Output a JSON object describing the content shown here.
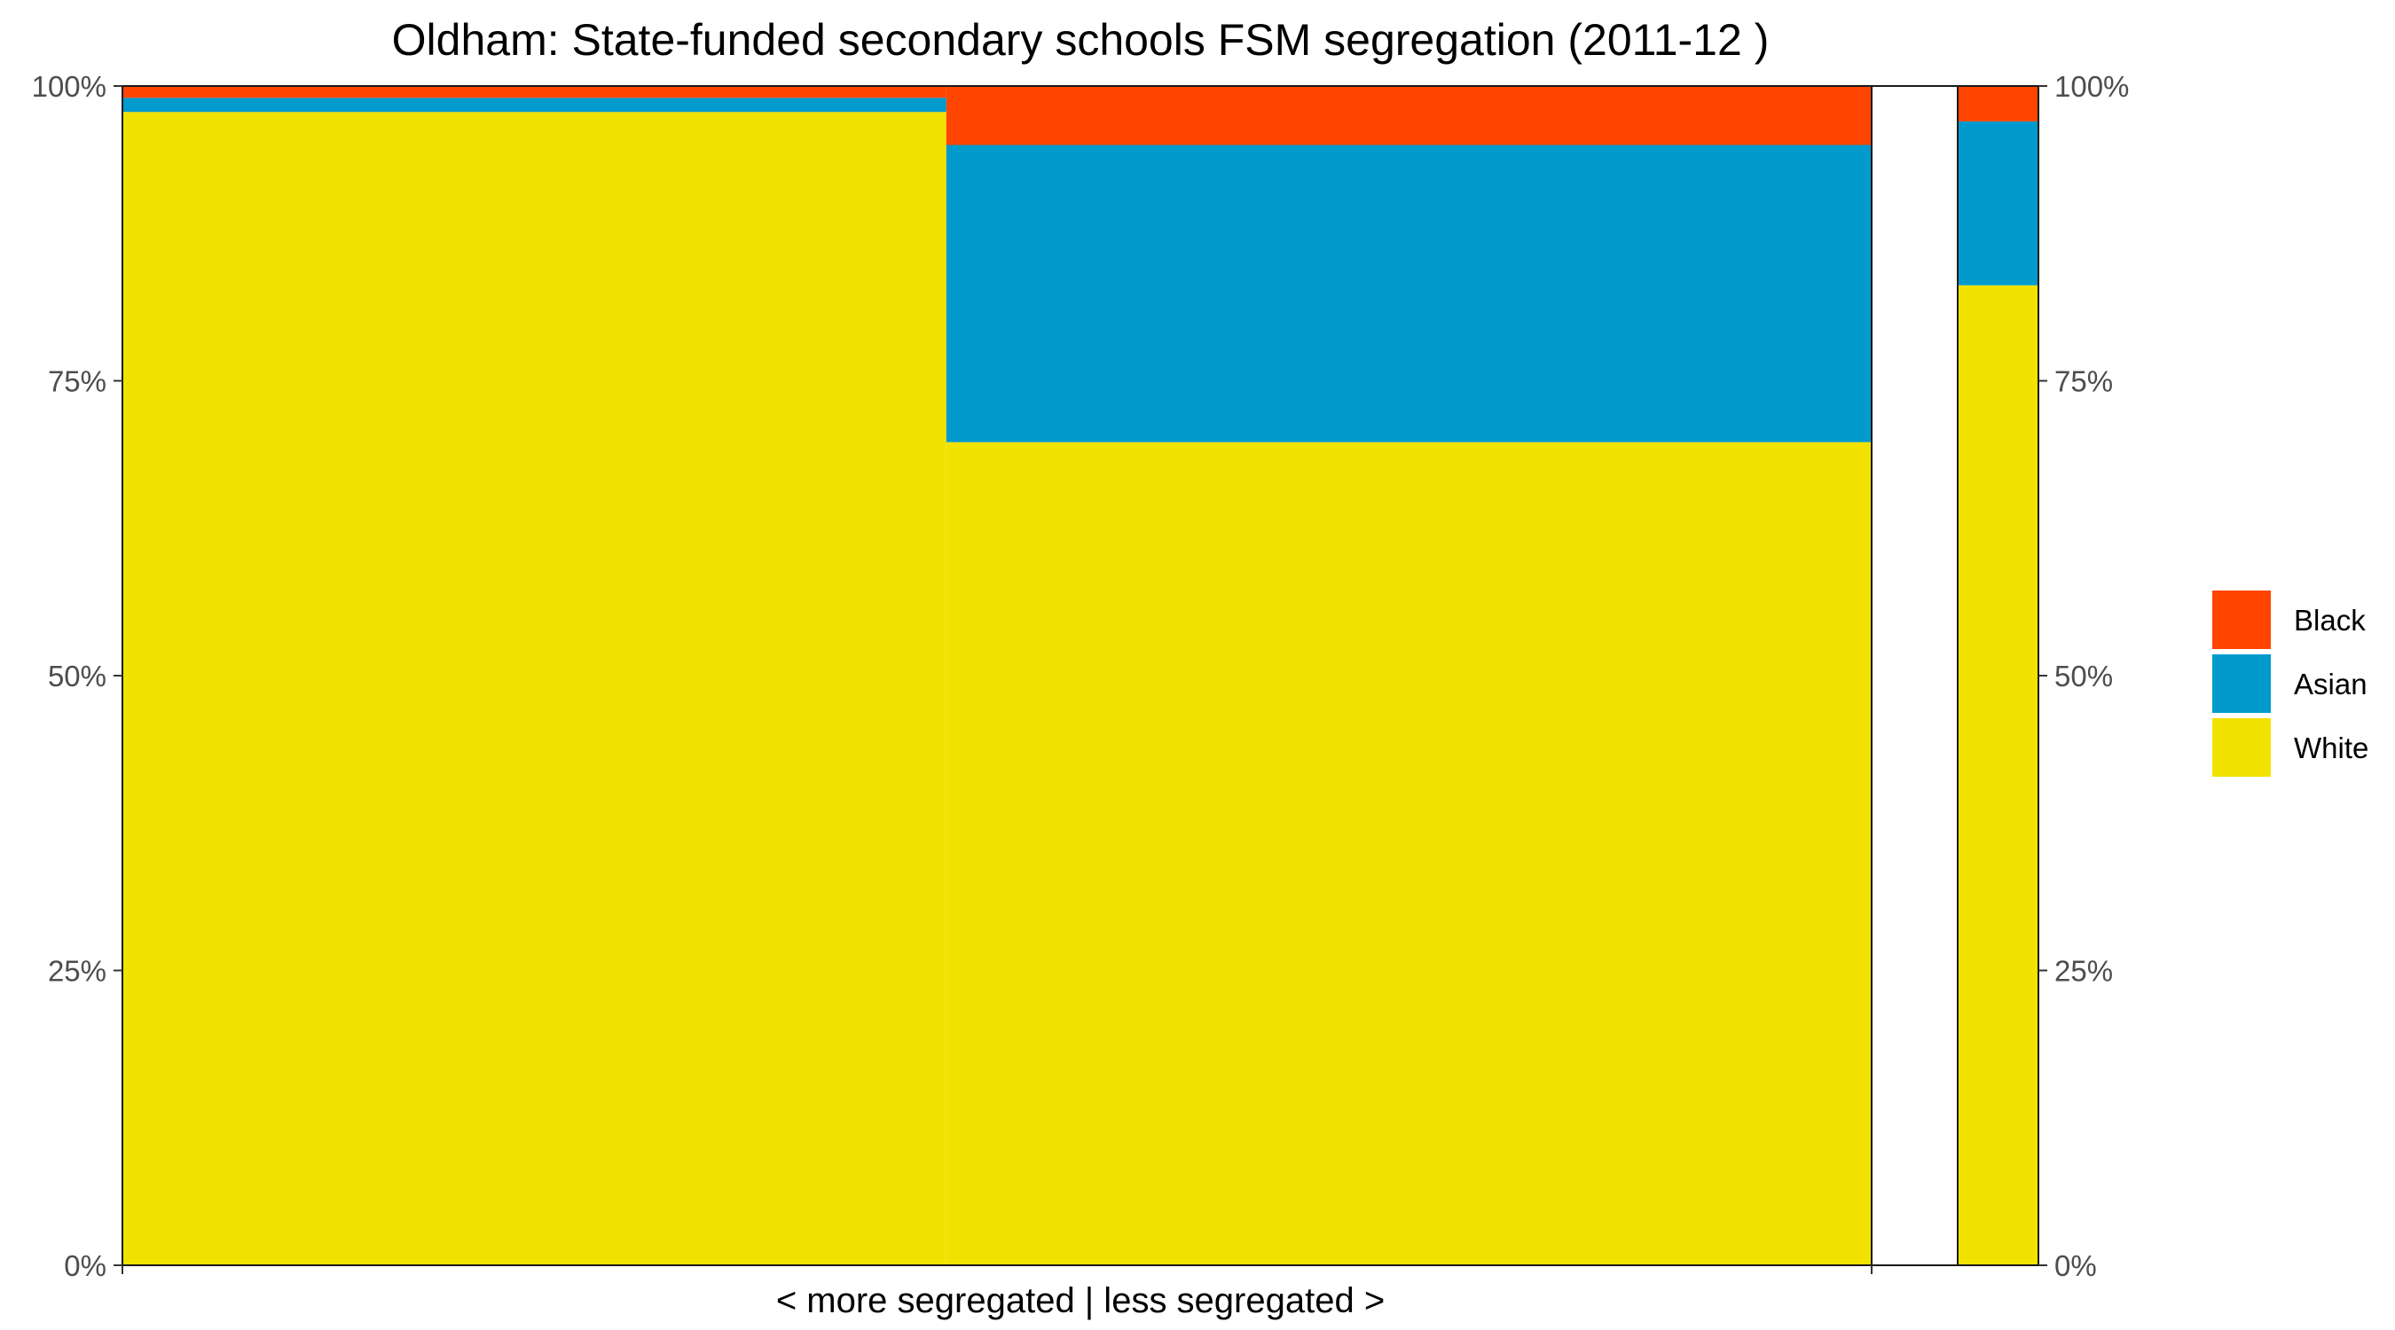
{
  "chart_data": {
    "type": "bar",
    "subtype": "stacked-percent-mosaic",
    "title": "Oldham: State-funded secondary schools FSM segregation (2011-12 )",
    "xlabel": "< more segregated | less segregated >",
    "ylabel": "",
    "ylim": [
      0,
      1
    ],
    "y_ticks": [
      "0%",
      "25%",
      "50%",
      "75%",
      "100%"
    ],
    "y_tick_values": [
      0,
      0.25,
      0.5,
      0.75,
      1.0
    ],
    "secondary_y_axis": true,
    "grid": false,
    "legend_position": "right",
    "series": [
      {
        "name": "White",
        "color": "#F2E200"
      },
      {
        "name": "Asian",
        "color": "#009ACD"
      },
      {
        "name": "Black",
        "color": "#FF4500"
      }
    ],
    "legend_order": [
      "Black",
      "Asian",
      "White"
    ],
    "columns": [
      {
        "width_share": 0.471,
        "values": {
          "White": 0.978,
          "Asian": 0.012,
          "Black": 0.01
        },
        "empty": false
      },
      {
        "width_share": 0.529,
        "values": {
          "White": 0.698,
          "Asian": 0.252,
          "Black": 0.05
        },
        "empty": false
      },
      {
        "width_share": null,
        "values": {},
        "empty": true
      },
      {
        "width_share": null,
        "values": {
          "White": 0.831,
          "Asian": 0.139,
          "Black": 0.03
        },
        "empty": false
      }
    ]
  }
}
